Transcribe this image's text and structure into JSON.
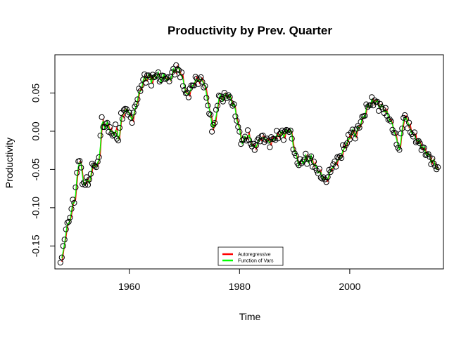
{
  "chart_data": {
    "type": "line",
    "title": "Productivity by Prev. Quarter",
    "xlabel": "Time",
    "ylabel": "Productivity",
    "xlim": [
      1946.5,
      2017
    ],
    "ylim": [
      -0.18,
      0.1
    ],
    "x_ticks": [
      1960,
      1980,
      2000
    ],
    "x_tick_labels": [
      "1960",
      "1980",
      "2000"
    ],
    "y_ticks": [
      -0.15,
      -0.1,
      -0.05,
      0.0,
      0.05
    ],
    "y_tick_labels": [
      "-0.15",
      "-0.10",
      "-0.05",
      "0.00",
      "0.05"
    ],
    "legend": {
      "position": "bottom",
      "entries": [
        {
          "label": "Autoregressive",
          "color": "#ff0000"
        },
        {
          "label": "Function of Vars",
          "color": "#00ff00"
        }
      ]
    },
    "grid": false,
    "observed_knots": [
      [
        1947.5,
        -0.17
      ],
      [
        1948.0,
        -0.155
      ],
      [
        1948.5,
        -0.125
      ],
      [
        1949.0,
        -0.12
      ],
      [
        1949.5,
        -0.1
      ],
      [
        1950.0,
        -0.09
      ],
      [
        1950.5,
        -0.055
      ],
      [
        1951.0,
        -0.032
      ],
      [
        1951.5,
        -0.07
      ],
      [
        1952.0,
        -0.065
      ],
      [
        1952.5,
        -0.068
      ],
      [
        1953.0,
        -0.055
      ],
      [
        1953.5,
        -0.04
      ],
      [
        1954.0,
        -0.05
      ],
      [
        1954.5,
        -0.03
      ],
      [
        1955.0,
        0.015
      ],
      [
        1955.5,
        0.005
      ],
      [
        1956.0,
        0.01
      ],
      [
        1956.5,
        0.0
      ],
      [
        1957.0,
        -0.005
      ],
      [
        1957.5,
        0.002
      ],
      [
        1958.0,
        -0.012
      ],
      [
        1958.5,
        0.02
      ],
      [
        1959.0,
        0.025
      ],
      [
        1959.5,
        0.03
      ],
      [
        1960.0,
        0.02
      ],
      [
        1960.5,
        0.015
      ],
      [
        1961.0,
        0.03
      ],
      [
        1961.5,
        0.045
      ],
      [
        1962.0,
        0.055
      ],
      [
        1962.5,
        0.068
      ],
      [
        1963.0,
        0.07
      ],
      [
        1963.5,
        0.072
      ],
      [
        1964.0,
        0.066
      ],
      [
        1964.5,
        0.071
      ],
      [
        1965.0,
        0.075
      ],
      [
        1965.5,
        0.068
      ],
      [
        1966.0,
        0.07
      ],
      [
        1966.5,
        0.072
      ],
      [
        1967.0,
        0.066
      ],
      [
        1967.5,
        0.072
      ],
      [
        1968.0,
        0.079
      ],
      [
        1968.5,
        0.082
      ],
      [
        1969.0,
        0.08
      ],
      [
        1969.5,
        0.07
      ],
      [
        1970.0,
        0.055
      ],
      [
        1970.5,
        0.045
      ],
      [
        1971.0,
        0.055
      ],
      [
        1971.5,
        0.06
      ],
      [
        1972.0,
        0.068
      ],
      [
        1972.5,
        0.066
      ],
      [
        1973.0,
        0.068
      ],
      [
        1973.5,
        0.062
      ],
      [
        1974.0,
        0.045
      ],
      [
        1974.5,
        0.025
      ],
      [
        1975.0,
        0.005
      ],
      [
        1975.5,
        0.01
      ],
      [
        1976.0,
        0.04
      ],
      [
        1976.5,
        0.045
      ],
      [
        1977.0,
        0.042
      ],
      [
        1977.5,
        0.048
      ],
      [
        1978.0,
        0.045
      ],
      [
        1978.5,
        0.04
      ],
      [
        1979.0,
        0.03
      ],
      [
        1979.5,
        0.015
      ],
      [
        1980.0,
        -0.005
      ],
      [
        1980.5,
        -0.015
      ],
      [
        1981.0,
        -0.008
      ],
      [
        1981.5,
        -0.005
      ],
      [
        1982.0,
        -0.015
      ],
      [
        1982.5,
        -0.022
      ],
      [
        1983.0,
        -0.018
      ],
      [
        1983.5,
        -0.01
      ],
      [
        1984.0,
        -0.008
      ],
      [
        1984.5,
        -0.01
      ],
      [
        1985.0,
        -0.012
      ],
      [
        1985.5,
        -0.015
      ],
      [
        1986.0,
        -0.01
      ],
      [
        1986.5,
        -0.008
      ],
      [
        1987.0,
        -0.005
      ],
      [
        1987.5,
        -0.002
      ],
      [
        1988.0,
        -0.005
      ],
      [
        1988.5,
        0.0
      ],
      [
        1989.0,
        0.003
      ],
      [
        1989.5,
        -0.01
      ],
      [
        1990.0,
        -0.03
      ],
      [
        1990.5,
        -0.04
      ],
      [
        1991.0,
        -0.042
      ],
      [
        1991.5,
        -0.038
      ],
      [
        1992.0,
        -0.035
      ],
      [
        1992.5,
        -0.038
      ],
      [
        1993.0,
        -0.035
      ],
      [
        1993.5,
        -0.045
      ],
      [
        1994.0,
        -0.05
      ],
      [
        1994.5,
        -0.055
      ],
      [
        1995.0,
        -0.06
      ],
      [
        1995.5,
        -0.065
      ],
      [
        1996.0,
        -0.06
      ],
      [
        1996.5,
        -0.05
      ],
      [
        1997.0,
        -0.045
      ],
      [
        1997.5,
        -0.04
      ],
      [
        1998.0,
        -0.035
      ],
      [
        1998.5,
        -0.03
      ],
      [
        1999.0,
        -0.02
      ],
      [
        1999.5,
        -0.015
      ],
      [
        2000.0,
        -0.005
      ],
      [
        2000.5,
        0.0
      ],
      [
        2001.0,
        -0.005
      ],
      [
        2001.5,
        0.005
      ],
      [
        2002.0,
        0.012
      ],
      [
        2002.5,
        0.02
      ],
      [
        2003.0,
        0.03
      ],
      [
        2003.5,
        0.035
      ],
      [
        2004.0,
        0.038
      ],
      [
        2004.5,
        0.04
      ],
      [
        2005.0,
        0.035
      ],
      [
        2005.5,
        0.032
      ],
      [
        2006.0,
        0.03
      ],
      [
        2006.5,
        0.025
      ],
      [
        2007.0,
        0.018
      ],
      [
        2007.5,
        0.01
      ],
      [
        2008.0,
        0.0
      ],
      [
        2008.5,
        -0.015
      ],
      [
        2009.0,
        -0.025
      ],
      [
        2009.5,
        0.01
      ],
      [
        2010.0,
        0.02
      ],
      [
        2010.5,
        0.01
      ],
      [
        2011.0,
        0.0
      ],
      [
        2011.5,
        -0.005
      ],
      [
        2012.0,
        -0.01
      ],
      [
        2012.5,
        -0.015
      ],
      [
        2013.0,
        -0.02
      ],
      [
        2013.5,
        -0.025
      ],
      [
        2014.0,
        -0.03
      ],
      [
        2014.5,
        -0.035
      ],
      [
        2015.0,
        -0.04
      ],
      [
        2015.5,
        -0.045
      ],
      [
        2016.0,
        -0.047
      ]
    ]
  }
}
